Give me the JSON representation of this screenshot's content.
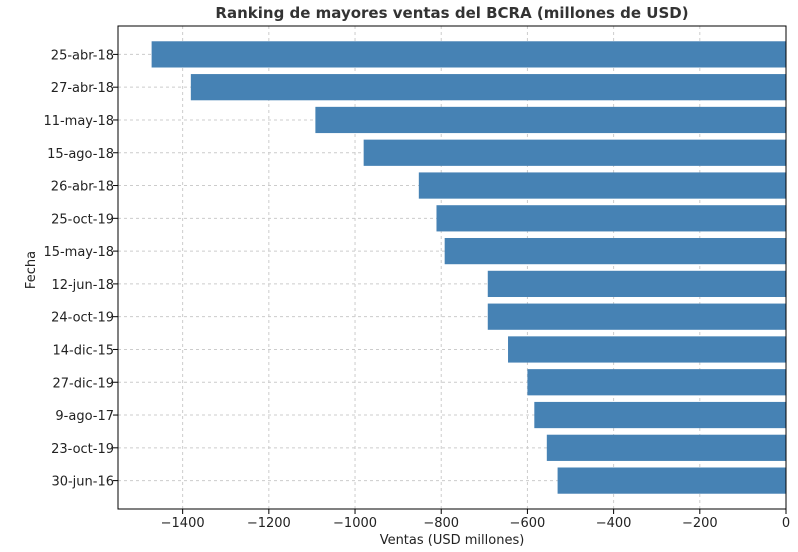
{
  "chart_data": {
    "type": "bar",
    "orientation": "horizontal",
    "title": "Ranking de mayores ventas del BCRA (millones de USD)",
    "xlabel": "Ventas (USD millones)",
    "ylabel": "Fecha",
    "xlim": [
      -1550,
      0
    ],
    "x_ticks": [
      -1400,
      -1200,
      -1000,
      -800,
      -600,
      -400,
      -200,
      0
    ],
    "x_tick_labels": [
      "−1400",
      "−1200",
      "−1000",
      "−800",
      "−600",
      "−400",
      "−200",
      "0"
    ],
    "grid": true,
    "bar_color": "#4682b4",
    "categories": [
      "25-abr-18",
      "27-abr-18",
      "11-may-18",
      "15-ago-18",
      "26-abr-18",
      "25-oct-19",
      "15-may-18",
      "12-jun-18",
      "24-oct-19",
      "14-dic-15",
      "27-dic-19",
      "9-ago-17",
      "23-oct-19",
      "30-jun-16"
    ],
    "values": [
      -1472,
      -1381,
      -1092,
      -980,
      -852,
      -811,
      -792,
      -692,
      -692,
      -645,
      -600,
      -584,
      -555,
      -530
    ]
  }
}
